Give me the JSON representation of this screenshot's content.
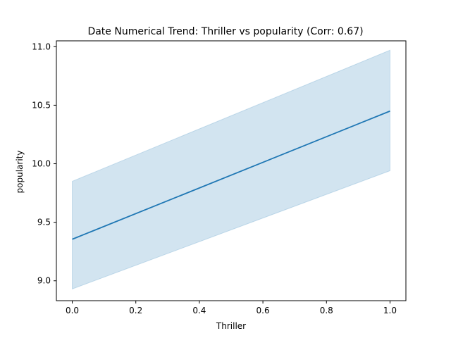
{
  "chart_data": {
    "type": "line",
    "title": "Date Numerical Trend: Thriller vs popularity (Corr: 0.67)",
    "xlabel": "Thriller",
    "ylabel": "popularity",
    "xlim": [
      -0.05,
      1.05
    ],
    "ylim": [
      8.83,
      11.05
    ],
    "xticks": [
      0.0,
      0.2,
      0.4,
      0.6,
      0.8,
      1.0
    ],
    "xtick_labels": [
      "0.0",
      "0.2",
      "0.4",
      "0.6",
      "0.8",
      "1.0"
    ],
    "yticks": [
      9.0,
      9.5,
      10.0,
      10.5,
      11.0
    ],
    "ytick_labels": [
      "9.0",
      "9.5",
      "10.0",
      "10.5",
      "11.0"
    ],
    "grid": false,
    "series": [
      {
        "x": [
          0.0,
          1.0
        ],
        "y": [
          9.355,
          10.45
        ],
        "ci_lower": [
          8.93,
          9.94
        ],
        "ci_upper": [
          9.85,
          10.97
        ],
        "color": "#1f77b4",
        "band_color": "#1f77b4",
        "band_opacity": 0.2
      }
    ]
  }
}
